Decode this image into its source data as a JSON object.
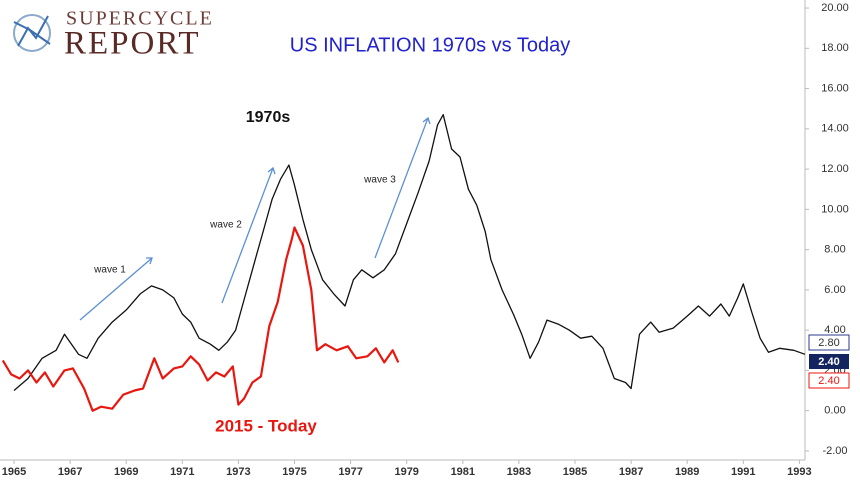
{
  "logo": {
    "line1": "SUPERCYCLE",
    "line2": "REPORT"
  },
  "chart_data": {
    "type": "line",
    "title": "US INFLATION 1970s vs Today",
    "annotations": [
      "1970s",
      "wave 1",
      "wave 2",
      "wave 3",
      "2015 - Today"
    ],
    "xlim": [
      1964.5,
      1993.2
    ],
    "ylim": [
      -2.45,
      20.4
    ],
    "xticks": [
      1965,
      1967,
      1969,
      1971,
      1973,
      1975,
      1977,
      1979,
      1981,
      1983,
      1985,
      1987,
      1989,
      1991,
      1993
    ],
    "yticks": [
      {
        "value": -2,
        "label": "-2.00"
      },
      {
        "value": 0,
        "label": "0.00"
      },
      {
        "value": 2,
        "label": "2.00"
      },
      {
        "value": 4,
        "label": "4.00"
      },
      {
        "value": 6,
        "label": "6.00"
      },
      {
        "value": 8,
        "label": "8.00"
      },
      {
        "value": 10,
        "label": "10.00"
      },
      {
        "value": 12,
        "label": "12.00"
      },
      {
        "value": 14,
        "label": "14.00"
      },
      {
        "value": 16,
        "label": "16.00"
      },
      {
        "value": 18,
        "label": "18.00"
      },
      {
        "value": 20,
        "label": "20.00"
      }
    ],
    "grid": false,
    "price_labels": [
      "2.80",
      "2.40",
      "2.40"
    ],
    "series": [
      {
        "color": "#111111",
        "x": [
          1965.0,
          1965.5,
          1966.0,
          1966.5,
          1966.8,
          1967.0,
          1967.3,
          1967.6,
          1968.0,
          1968.5,
          1969.0,
          1969.5,
          1969.9,
          1970.3,
          1970.7,
          1971.0,
          1971.3,
          1971.6,
          1972.0,
          1972.3,
          1972.6,
          1972.9,
          1973.2,
          1973.6,
          1973.9,
          1974.2,
          1974.5,
          1974.8,
          1975.0,
          1975.3,
          1975.6,
          1976.0,
          1976.4,
          1976.8,
          1977.1,
          1977.4,
          1977.8,
          1978.2,
          1978.6,
          1979.0,
          1979.4,
          1979.8,
          1980.1,
          1980.3,
          1980.6,
          1980.9,
          1981.2,
          1981.5,
          1981.8,
          1982.0,
          1982.4,
          1982.8,
          1983.1,
          1983.4,
          1983.7,
          1984.0,
          1984.4,
          1984.8,
          1985.2,
          1985.6,
          1986.0,
          1986.4,
          1986.8,
          1987.0,
          1987.3,
          1987.7,
          1988.0,
          1988.5,
          1989.0,
          1989.4,
          1989.8,
          1990.2,
          1990.5,
          1990.8,
          1991.0,
          1991.3,
          1991.6,
          1991.9,
          1992.3,
          1992.8,
          1993.2
        ],
        "values": [
          1.0,
          1.6,
          2.6,
          3.0,
          3.8,
          3.4,
          2.8,
          2.6,
          3.6,
          4.4,
          5.0,
          5.8,
          6.2,
          6.0,
          5.6,
          4.8,
          4.4,
          3.6,
          3.3,
          3.0,
          3.4,
          4.0,
          5.5,
          7.5,
          9.0,
          10.5,
          11.5,
          12.2,
          11.2,
          9.5,
          8.0,
          6.5,
          5.8,
          5.2,
          6.5,
          7.0,
          6.6,
          7.0,
          7.8,
          9.3,
          10.8,
          12.4,
          14.2,
          14.7,
          13.0,
          12.6,
          11.0,
          10.2,
          8.9,
          7.5,
          6.0,
          4.8,
          3.8,
          2.6,
          3.4,
          4.5,
          4.3,
          4.0,
          3.6,
          3.7,
          3.1,
          1.6,
          1.4,
          1.1,
          3.8,
          4.4,
          3.9,
          4.1,
          4.7,
          5.2,
          4.7,
          5.3,
          4.7,
          5.6,
          6.3,
          4.9,
          3.6,
          2.9,
          3.1,
          3.0,
          2.8
        ]
      },
      {
        "color": "#e8170f",
        "x": [
          1964.6,
          1964.9,
          1965.2,
          1965.5,
          1965.8,
          1966.1,
          1966.4,
          1966.8,
          1967.1,
          1967.5,
          1967.8,
          1968.1,
          1968.5,
          1968.9,
          1969.3,
          1969.6,
          1970.0,
          1970.3,
          1970.7,
          1971.0,
          1971.3,
          1971.6,
          1971.9,
          1972.2,
          1972.5,
          1972.8,
          1973.0,
          1973.2,
          1973.5,
          1973.8,
          1974.1,
          1974.4,
          1974.7,
          1974.9,
          1975.0,
          1975.3,
          1975.6,
          1975.8,
          1976.1,
          1976.5,
          1976.9,
          1977.2,
          1977.6,
          1977.9,
          1978.2,
          1978.5,
          1978.7
        ],
        "values": [
          2.5,
          1.8,
          1.6,
          2.0,
          1.4,
          1.9,
          1.2,
          2.0,
          2.1,
          1.1,
          0.0,
          0.2,
          0.1,
          0.8,
          1.0,
          1.1,
          2.6,
          1.6,
          2.1,
          2.2,
          2.7,
          2.3,
          1.5,
          1.9,
          1.7,
          2.2,
          0.3,
          0.6,
          1.4,
          1.7,
          4.2,
          5.4,
          7.5,
          8.5,
          9.1,
          8.2,
          6.0,
          3.0,
          3.3,
          3.0,
          3.2,
          2.6,
          2.7,
          3.1,
          2.4,
          3.0,
          2.4
        ]
      }
    ]
  }
}
